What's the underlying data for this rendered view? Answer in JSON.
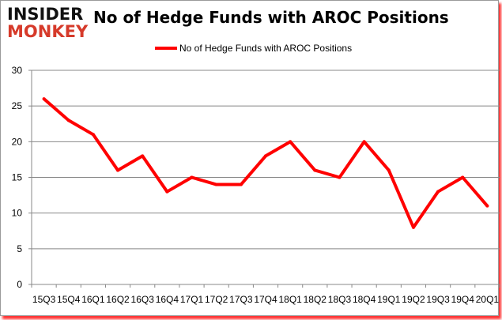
{
  "logo": {
    "line1": "INSIDER",
    "line2": "MONKEY"
  },
  "chart_data": {
    "type": "line",
    "title": "No of Hedge Funds with AROC Positions",
    "categories": [
      "15Q3",
      "15Q4",
      "16Q1",
      "16Q2",
      "16Q3",
      "16Q4",
      "17Q1",
      "17Q2",
      "17Q3",
      "17Q4",
      "18Q1",
      "18Q2",
      "18Q3",
      "18Q4",
      "19Q1",
      "19Q2",
      "19Q3",
      "19Q4",
      "20Q1"
    ],
    "series": [
      {
        "name": "No of Hedge Funds with AROC Positions",
        "color": "#ff0000",
        "values": [
          26,
          23,
          21,
          16,
          18,
          13,
          15,
          14,
          14,
          18,
          20,
          16,
          15,
          20,
          16,
          8,
          13,
          15,
          11
        ]
      }
    ],
    "ylim": [
      0,
      30
    ],
    "yticks": [
      0,
      5,
      10,
      15,
      20,
      25,
      30
    ],
    "grid": true,
    "legend": "top"
  }
}
